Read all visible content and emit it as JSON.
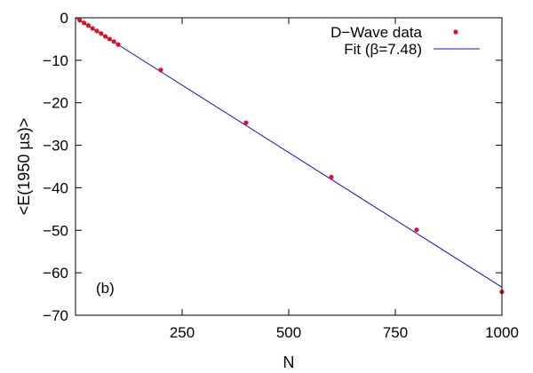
{
  "chart_data": {
    "type": "scatter",
    "xlabel": "N",
    "ylabel": "<E(1950 µs)>",
    "xlim": [
      0,
      1000
    ],
    "ylim": [
      -70,
      0
    ],
    "x_ticks": [
      250,
      500,
      750,
      1000
    ],
    "x_tick_labels": [
      "250",
      "500",
      "750",
      "1000"
    ],
    "y_ticks": [
      0,
      -10,
      -20,
      -30,
      -40,
      -50,
      -60,
      -70
    ],
    "y_tick_labels": [
      "0",
      "−10",
      "−20",
      "−30",
      "−40",
      "−50",
      "−60",
      "−70"
    ],
    "grid": false,
    "legend_position": "top-right",
    "annotation": "(b)",
    "series": [
      {
        "name": "D−Wave data",
        "kind": "points",
        "color": "#e0102a",
        "x": [
          10,
          20,
          30,
          40,
          50,
          60,
          70,
          80,
          90,
          100,
          200,
          400,
          600,
          800,
          1000
        ],
        "y": [
          -0.6,
          -1.2,
          -1.8,
          -2.5,
          -3.1,
          -3.7,
          -4.4,
          -5.0,
          -5.6,
          -6.3,
          -12.3,
          -24.7,
          -37.5,
          -49.9,
          -64.5
        ]
      },
      {
        "name": "Fit (β=7.48)",
        "kind": "line",
        "color": "#1010e0",
        "x": [
          0,
          1000
        ],
        "y": [
          0,
          -63.4
        ]
      }
    ]
  }
}
